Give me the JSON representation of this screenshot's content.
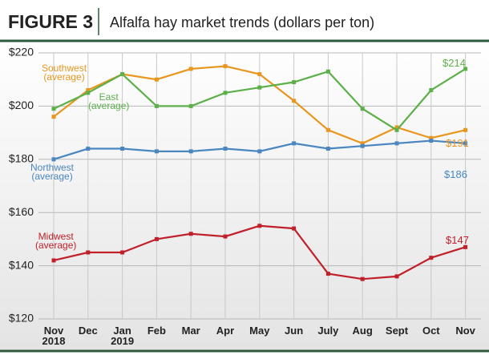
{
  "header": {
    "figure": "FIGURE 3",
    "title": "Alfalfa hay market trends (dollars per ton)"
  },
  "chart_data": {
    "type": "line",
    "categories": [
      "Nov\n2018",
      "Dec",
      "Jan\n2019",
      "Feb",
      "Mar",
      "Apr",
      "May",
      "Jun",
      "July",
      "Aug",
      "Sept",
      "Oct",
      "Nov"
    ],
    "ylim": [
      120,
      220
    ],
    "yticks": [
      {
        "value": 120,
        "label": "$120"
      },
      {
        "value": 140,
        "label": "$140"
      },
      {
        "value": 160,
        "label": "$160"
      },
      {
        "value": 180,
        "label": "$180"
      },
      {
        "value": 200,
        "label": "$200"
      },
      {
        "value": 220,
        "label": "$220"
      }
    ],
    "grid": true,
    "series": [
      {
        "name": "Southwest\n(average)",
        "color": "#e8961e",
        "values": [
          196,
          206,
          212,
          210,
          214,
          215,
          212,
          202,
          191,
          186,
          192,
          188,
          191
        ],
        "value_labels": [
          null,
          null,
          null,
          null,
          null,
          null,
          null,
          null,
          null,
          null,
          null,
          null,
          "$191"
        ]
      },
      {
        "name": "East\n(average)",
        "color": "#5cb04a",
        "values": [
          199,
          205,
          212,
          200,
          200,
          205,
          207,
          209,
          213,
          199,
          191,
          206,
          214
        ],
        "value_labels": [
          null,
          null,
          null,
          null,
          null,
          null,
          null,
          null,
          null,
          null,
          null,
          null,
          "$214"
        ]
      },
      {
        "name": "Northwest\n(average)",
        "color": "#4a86c0",
        "values": [
          180,
          184,
          184,
          183,
          183,
          184,
          183,
          186,
          184,
          185,
          186,
          187,
          186
        ],
        "value_labels": [
          null,
          null,
          null,
          null,
          null,
          null,
          null,
          null,
          null,
          null,
          null,
          null,
          "$186"
        ]
      },
      {
        "name": "Midwest\n(average)",
        "color": "#c0202a",
        "values": [
          142,
          145,
          145,
          150,
          152,
          151,
          155,
          154,
          137,
          135,
          136,
          143,
          147
        ],
        "value_labels": [
          null,
          null,
          null,
          null,
          null,
          null,
          null,
          null,
          null,
          null,
          null,
          null,
          "$147"
        ]
      }
    ]
  }
}
